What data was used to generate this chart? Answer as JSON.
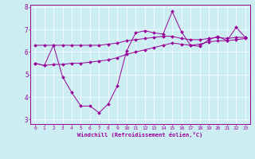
{
  "xlabel": "Windchill (Refroidissement éolien,°C)",
  "bg_color": "#cceef2",
  "line_color": "#990099",
  "xlim": [
    -0.5,
    23.5
  ],
  "ylim": [
    2.8,
    8.1
  ],
  "yticks": [
    3,
    4,
    5,
    6,
    7,
    8
  ],
  "xticks": [
    0,
    1,
    2,
    3,
    4,
    5,
    6,
    7,
    8,
    9,
    10,
    11,
    12,
    13,
    14,
    15,
    16,
    17,
    18,
    19,
    20,
    21,
    22,
    23
  ],
  "series1_x": [
    0,
    1,
    2,
    3,
    4,
    5,
    6,
    7,
    8,
    9,
    10,
    11,
    12,
    13,
    14,
    15,
    16,
    17,
    18,
    19,
    20,
    21,
    22,
    23
  ],
  "series1_y": [
    6.3,
    6.3,
    6.3,
    6.3,
    6.3,
    6.3,
    6.3,
    6.3,
    6.35,
    6.4,
    6.5,
    6.55,
    6.6,
    6.65,
    6.7,
    6.7,
    6.6,
    6.55,
    6.55,
    6.6,
    6.65,
    6.6,
    6.65,
    6.65
  ],
  "series2_x": [
    0,
    1,
    2,
    3,
    4,
    5,
    6,
    7,
    8,
    9,
    10,
    11,
    12,
    13,
    14,
    15,
    16,
    17,
    18,
    19,
    20,
    21,
    22,
    23
  ],
  "series2_y": [
    5.5,
    5.4,
    6.3,
    4.9,
    4.2,
    3.6,
    3.6,
    3.3,
    3.7,
    4.5,
    6.05,
    6.85,
    6.95,
    6.85,
    6.8,
    7.8,
    6.9,
    6.3,
    6.25,
    6.55,
    6.7,
    6.5,
    7.1,
    6.65
  ],
  "series3_x": [
    0,
    1,
    2,
    3,
    4,
    5,
    6,
    7,
    8,
    9,
    10,
    11,
    12,
    13,
    14,
    15,
    16,
    17,
    18,
    19,
    20,
    21,
    22,
    23
  ],
  "series3_y": [
    5.5,
    5.4,
    5.45,
    5.45,
    5.5,
    5.5,
    5.55,
    5.6,
    5.65,
    5.75,
    5.9,
    6.0,
    6.1,
    6.2,
    6.3,
    6.4,
    6.35,
    6.3,
    6.35,
    6.45,
    6.5,
    6.5,
    6.55,
    6.6
  ]
}
